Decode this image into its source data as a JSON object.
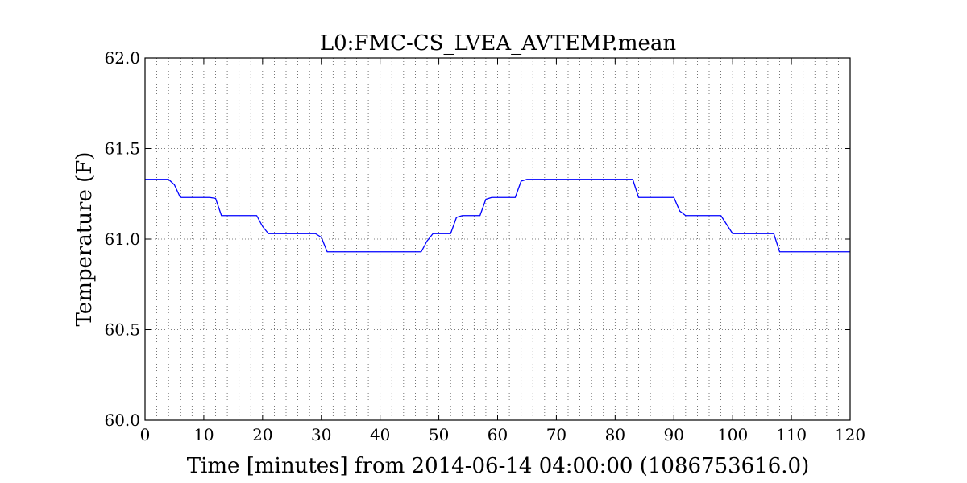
{
  "chart_data": {
    "type": "line",
    "title": "L0:FMC-CS_LVEA_AVTEMP.mean",
    "xlabel": "Time [minutes] from 2014-06-14 04:00:00 (1086753616.0)",
    "ylabel": "Temperature (F)",
    "xlim": [
      0,
      120
    ],
    "ylim": [
      60.0,
      62.0
    ],
    "xticks": [
      0,
      10,
      20,
      30,
      40,
      50,
      60,
      70,
      80,
      90,
      100,
      110,
      120
    ],
    "xtick_labels": [
      "0",
      "10",
      "20",
      "30",
      "40",
      "50",
      "60",
      "70",
      "80",
      "90",
      "100",
      "110",
      "120"
    ],
    "yticks": [
      60.0,
      60.5,
      61.0,
      61.5,
      62.0
    ],
    "ytick_labels": [
      "60.0",
      "60.5",
      "61.0",
      "61.5",
      "62.0"
    ],
    "minor_x_grid_step": 2,
    "grid": true,
    "series": [
      {
        "color": "#0000ff",
        "x": [
          0,
          4,
          5,
          6,
          11,
          12,
          13,
          19,
          20,
          21,
          29,
          30,
          31,
          47,
          48,
          49,
          52,
          53,
          54,
          57,
          58,
          59,
          63,
          64,
          65,
          83,
          84,
          90,
          91,
          92,
          98,
          99,
          100,
          107,
          108,
          120
        ],
        "y": [
          61.33,
          61.33,
          61.3,
          61.23,
          61.23,
          61.225,
          61.13,
          61.13,
          61.07,
          61.03,
          61.03,
          61.01,
          60.93,
          60.93,
          60.99,
          61.03,
          61.03,
          61.12,
          61.13,
          61.13,
          61.22,
          61.23,
          61.23,
          61.32,
          61.33,
          61.33,
          61.23,
          61.23,
          61.155,
          61.13,
          61.13,
          61.08,
          61.03,
          61.03,
          60.93,
          60.93
        ]
      }
    ]
  }
}
